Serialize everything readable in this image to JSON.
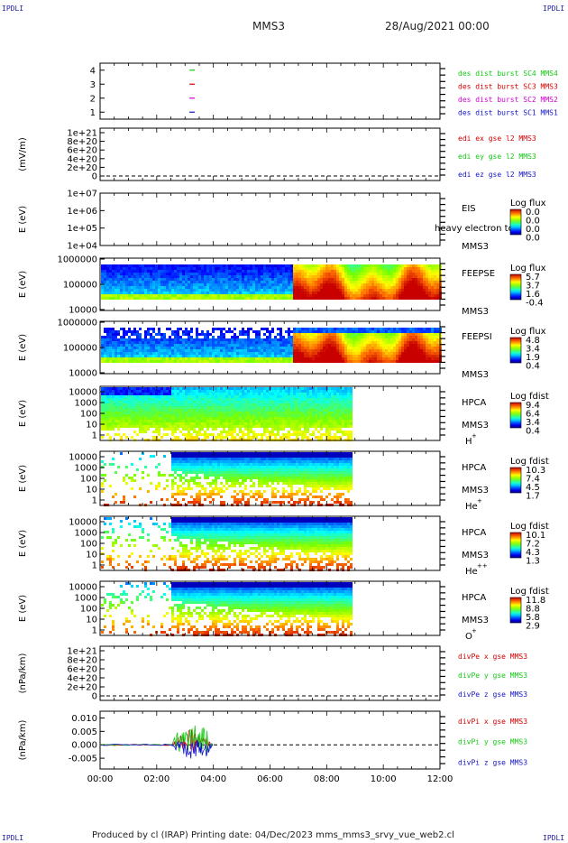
{
  "corner_labels": {
    "top_left": "IPDLI",
    "top_right": "IPDLI",
    "bottom_left": "IPDLI",
    "bottom_right": "IPDLI"
  },
  "header": {
    "title": "MMS3",
    "date": "28/Aug/2021 00:00"
  },
  "footer": {
    "text": "Produced by cl (IRAP)   Printing date: 04/Dec/2023   mms_mms3_srvy_vue_web2.cl"
  },
  "colors": {
    "red": "#d40000",
    "magenta": "#d400d4",
    "green": "#14c814",
    "blue": "#1414c8",
    "frame": "#000000"
  },
  "chart_data": [
    {
      "type": "scatter",
      "id": "burst",
      "ylim": [
        0.5,
        4.5
      ],
      "ticks": [
        "1",
        "2",
        "3",
        "4"
      ],
      "x": [
        "03:15"
      ],
      "series": [
        {
          "name": "des dist burst SC1 MMS1",
          "color": "#1414c8",
          "y": [
            1
          ]
        },
        {
          "name": "des dist burst SC2 MMS2",
          "color": "#d400d4",
          "y": [
            2
          ]
        },
        {
          "name": "des dist burst SC3 MMS3",
          "color": "#d40000",
          "y": [
            3
          ]
        },
        {
          "name": "des dist burst SC4 MMS4",
          "color": "#14c814",
          "y": [
            4
          ]
        }
      ]
    },
    {
      "type": "line",
      "id": "edi",
      "ylabel": "(mV/m)",
      "ticks": [
        "1e+21",
        "8e+20",
        "6e+20",
        "4e+20",
        "2e+20",
        "0"
      ],
      "legend": [
        {
          "name": "edi ex gse l2 MMS3",
          "color": "#d40000"
        },
        {
          "name": "edi ey gse l2 MMS3",
          "color": "#14c814"
        },
        {
          "name": "edi ez gse l2 MMS3",
          "color": "#1414c8"
        }
      ],
      "series": []
    },
    {
      "type": "heatmap",
      "id": "eis",
      "ylabel": "E (eV)",
      "ticks": [
        "1e+07",
        "1e+06",
        "1e+05",
        "1e+04"
      ],
      "instrument": [
        "EIS",
        "MMS3"
      ],
      "overlay_text": "heavy electron tof",
      "colorbar": {
        "title": "Log flux",
        "ticks": [
          "0.0",
          "0.0",
          "0.0",
          "0.0"
        ]
      },
      "data_window": []
    },
    {
      "type": "heatmap",
      "id": "feepse",
      "ylabel": "E (eV)",
      "ticks": [
        "1000000",
        "100000",
        "10000"
      ],
      "instrument": [
        "FEEPSE",
        "MMS3"
      ],
      "colorbar": {
        "title": "Log flux",
        "ticks": [
          "5.7",
          "3.7",
          "1.6",
          "-0.4"
        ]
      },
      "data_window": [
        "00:00",
        "12:00"
      ],
      "regime_change": "06:45"
    },
    {
      "type": "heatmap",
      "id": "feepsi",
      "ylabel": "E (eV)",
      "ticks": [
        "1000000",
        "100000",
        "10000"
      ],
      "instrument": [
        "FEEPSI",
        "MMS3"
      ],
      "colorbar": {
        "title": "Log flux",
        "ticks": [
          "4.8",
          "3.4",
          "1.9",
          "0.4"
        ]
      },
      "data_window": [
        "00:00",
        "12:00"
      ],
      "regime_change": "06:45"
    },
    {
      "type": "heatmap",
      "id": "hpca_h",
      "ylabel": "E (eV)",
      "ticks": [
        "10000",
        "1000",
        "100",
        "10",
        "1"
      ],
      "instrument": [
        "HPCA",
        "MMS3"
      ],
      "species": "H",
      "charge": "+",
      "colorbar": {
        "title": "Log fdist",
        "ticks": [
          "9.4",
          "6.4",
          "3.4",
          "0.4"
        ]
      },
      "data_window": [
        "00:00",
        "08:50"
      ],
      "regime_change": "02:30"
    },
    {
      "type": "heatmap",
      "id": "hpca_he",
      "ylabel": "E (eV)",
      "ticks": [
        "10000",
        "1000",
        "100",
        "10",
        "1"
      ],
      "instrument": [
        "HPCA",
        "MMS3"
      ],
      "species": "He",
      "charge": "+",
      "colorbar": {
        "title": "Log fdist",
        "ticks": [
          "10.3",
          "7.4",
          "4.5",
          "1.7"
        ]
      },
      "data_window": [
        "00:00",
        "08:50"
      ],
      "regime_change": "02:30"
    },
    {
      "type": "heatmap",
      "id": "hpca_he2",
      "ylabel": "E (eV)",
      "ticks": [
        "10000",
        "1000",
        "100",
        "10",
        "1"
      ],
      "instrument": [
        "HPCA",
        "MMS3"
      ],
      "species": "He",
      "charge": "++",
      "colorbar": {
        "title": "Log fdist",
        "ticks": [
          "10.1",
          "7.2",
          "4.3",
          "1.3"
        ]
      },
      "data_window": [
        "00:00",
        "08:50"
      ],
      "regime_change": "02:30"
    },
    {
      "type": "heatmap",
      "id": "hpca_o",
      "ylabel": "E (eV)",
      "ticks": [
        "10000",
        "1000",
        "100",
        "10",
        "1"
      ],
      "instrument": [
        "HPCA",
        "MMS3"
      ],
      "species": "O",
      "charge": "+",
      "colorbar": {
        "title": "Log fdist",
        "ticks": [
          "11.8",
          "8.8",
          "5.8",
          "2.9"
        ]
      },
      "data_window": [
        "00:00",
        "08:50"
      ],
      "regime_change": "02:30"
    },
    {
      "type": "line",
      "id": "divpe",
      "ylabel": "(nPa/km)",
      "ticks": [
        "1e+21",
        "8e+20",
        "6e+20",
        "4e+20",
        "2e+20",
        "0"
      ],
      "legend": [
        {
          "name": "divPe x gse MMS3",
          "color": "#d40000"
        },
        {
          "name": "divPe y gse MMS3",
          "color": "#14c814"
        },
        {
          "name": "divPe z gse MMS3",
          "color": "#1414c8"
        }
      ],
      "series": []
    },
    {
      "type": "line",
      "id": "divpi",
      "ylabel": "(nPa/km)",
      "ylim": [
        -0.009,
        0.0125
      ],
      "ticks": [
        "0.010",
        "0.005",
        "0.000",
        "-0.005"
      ],
      "legend": [
        {
          "name": "divPi x gse MMS3",
          "color": "#d40000"
        },
        {
          "name": "divPi y gse MMS3",
          "color": "#14c814"
        },
        {
          "name": "divPi z gse MMS3",
          "color": "#1414c8"
        }
      ],
      "data_window": [
        "00:00",
        "04:00"
      ],
      "series": [
        {
          "name": "divPi x gse MMS3",
          "color": "#d40000",
          "x": [
            "00:00",
            "02:30",
            "02:45",
            "03:00",
            "03:15",
            "03:30",
            "03:45",
            "04:00"
          ],
          "y": [
            0.0,
            0.0,
            0.004,
            0.006,
            0.008,
            0.005,
            0.003,
            0.0
          ]
        },
        {
          "name": "divPi y gse MMS3",
          "color": "#14c814",
          "x": [
            "00:00",
            "02:30",
            "02:45",
            "03:00",
            "03:15",
            "03:30",
            "03:45",
            "04:00"
          ],
          "y": [
            0.0,
            0.0,
            0.007,
            0.01,
            0.011,
            0.009,
            0.012,
            0.0
          ]
        },
        {
          "name": "divPi z gse MMS3",
          "color": "#1414c8",
          "x": [
            "00:00",
            "02:30",
            "02:45",
            "03:00",
            "03:15",
            "03:30",
            "03:45",
            "04:00"
          ],
          "y": [
            0.0,
            0.0,
            -0.004,
            -0.006,
            -0.007,
            -0.005,
            -0.006,
            0.0
          ]
        }
      ]
    }
  ],
  "time_axis": {
    "ticks": [
      "00:00",
      "02:00",
      "04:00",
      "06:00",
      "08:00",
      "10:00",
      "12:00"
    ],
    "range": [
      "00:00",
      "12:00"
    ]
  }
}
